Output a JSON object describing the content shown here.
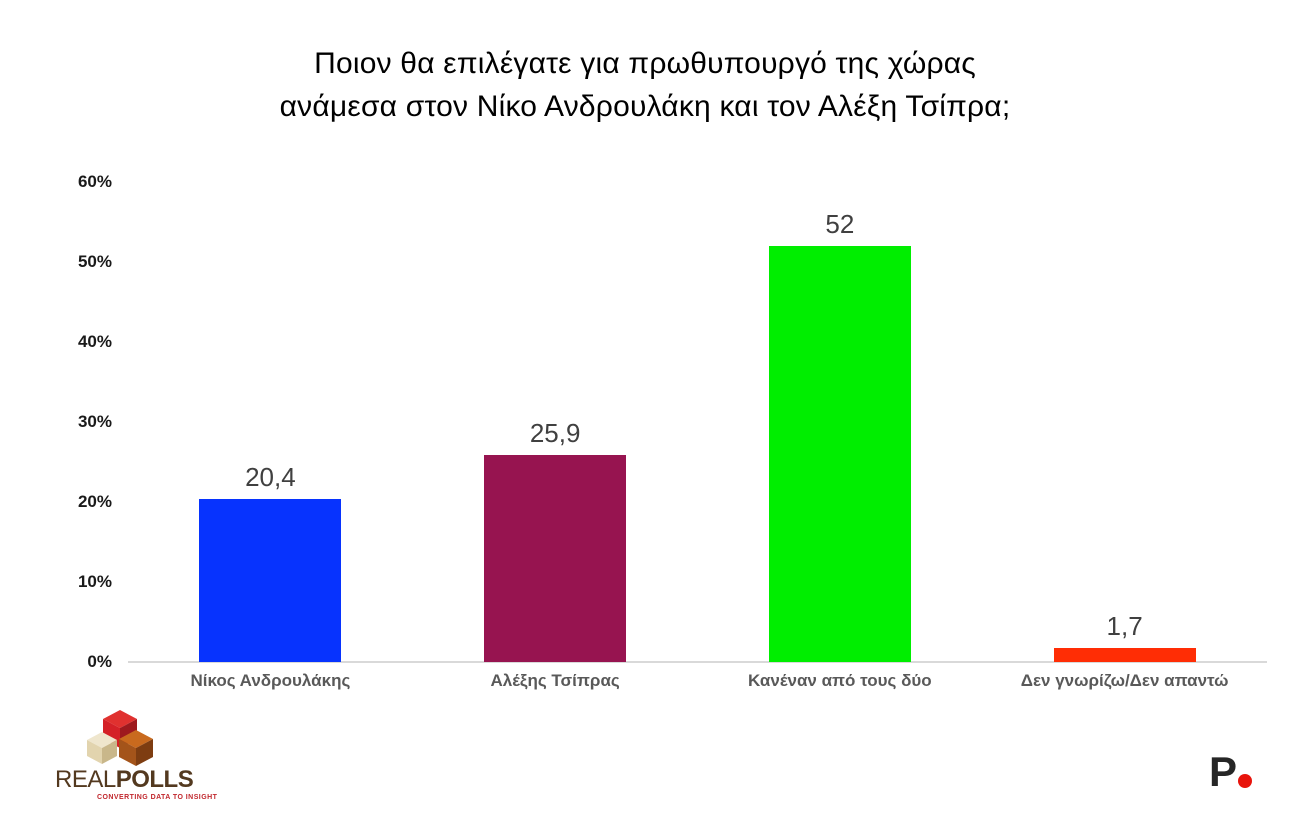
{
  "title": {
    "line1": "Ποιον θα επιλέγατε για πρωθυπουργό της χώρας",
    "line2": "ανάμεσα στον Νίκο Ανδρουλάκη και τον Αλέξη Τσίπρα;"
  },
  "chart_data": {
    "type": "bar",
    "title": "Ποιον θα επιλέγατε για πρωθυπουργό της χώρας ανάμεσα στον Νίκο Ανδρουλάκη και τον Αλέξη Τσίπρα;",
    "categories": [
      "Νίκος Ανδρουλάκης",
      "Αλέξης Τσίπρας",
      "Κανέναν από τους δύο",
      "Δεν γνωρίζω/Δεν απαντώ"
    ],
    "values": [
      20.4,
      25.9,
      52,
      1.7
    ],
    "value_labels": [
      "20,4",
      "25,9",
      "52",
      "1,7"
    ],
    "bar_colors": [
      "#0733fe",
      "#971450",
      "#00ee00",
      "#ff2d05"
    ],
    "xlabel": "",
    "ylabel": "",
    "ylim": [
      0,
      60
    ],
    "yticks": [
      0,
      10,
      20,
      30,
      40,
      50,
      60
    ],
    "ytick_labels": [
      "0%",
      "10%",
      "20%",
      "30%",
      "40%",
      "50%",
      "60%"
    ],
    "grid": false,
    "legend": false
  },
  "footer": {
    "realpolls": {
      "name_part1": "REAL",
      "name_part2": "POLLS",
      "tagline": "CONVERTING DATA TO INSIGHT",
      "brand_brown": "#53391f",
      "brand_red": "#c1272d"
    },
    "p_logo": {
      "letter": "P",
      "letter_color": "#262626",
      "dot_color": "#e8140c"
    }
  }
}
